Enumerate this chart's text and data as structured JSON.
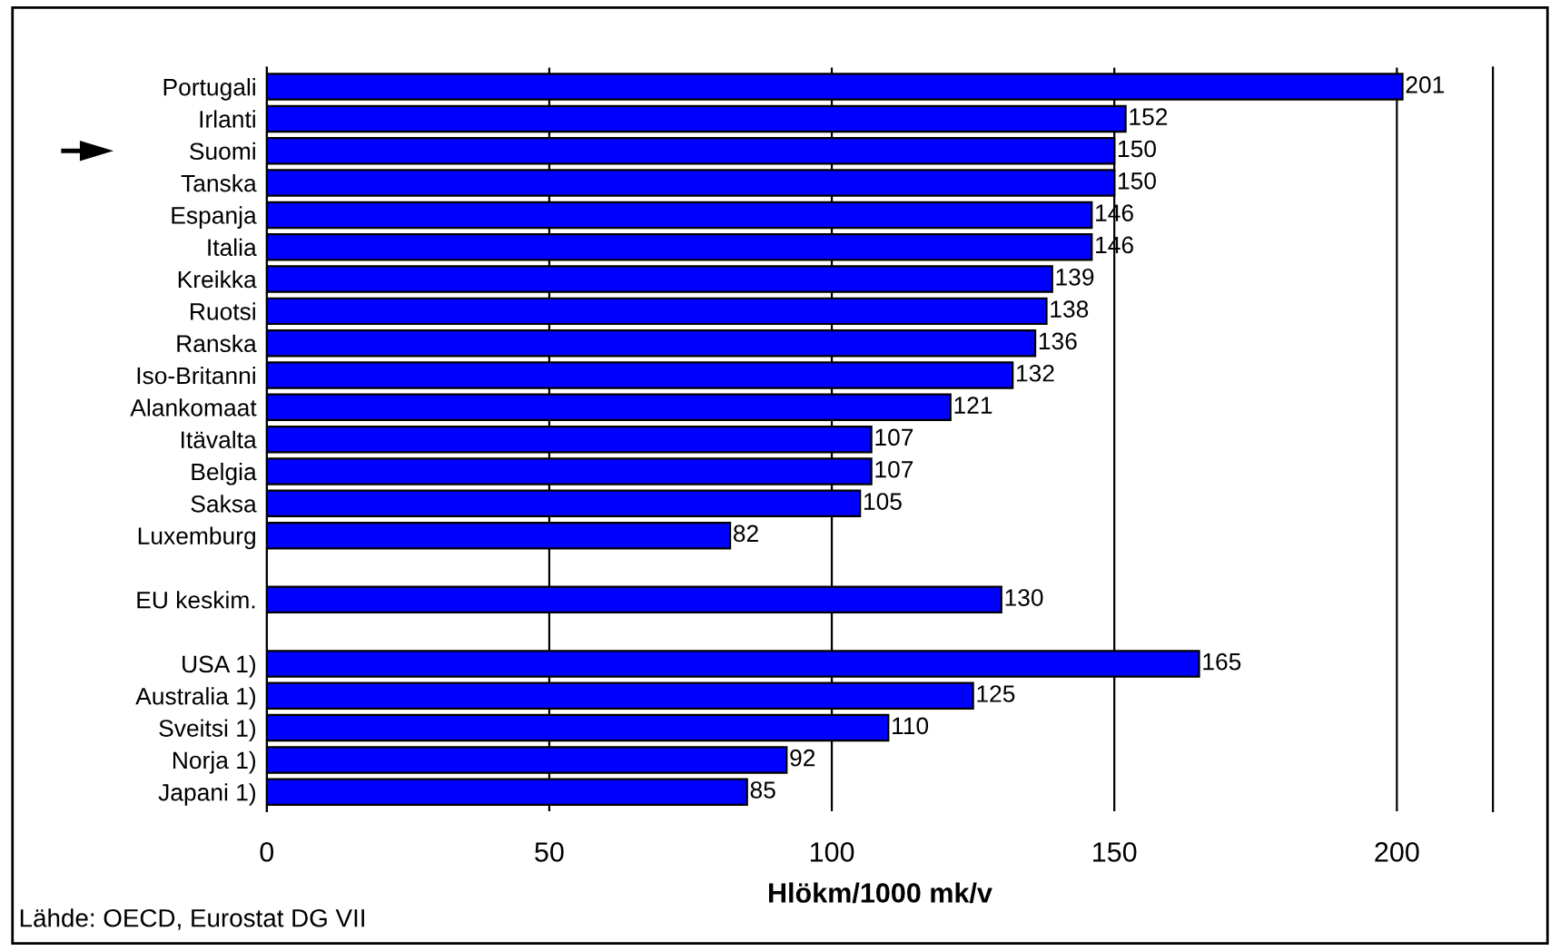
{
  "chart_data": {
    "type": "bar",
    "orientation": "horizontal",
    "xlabel": "Hlökm/1000 mk/v",
    "categories": [
      "Portugali",
      "Irlanti",
      "Suomi",
      "Tanska",
      "Espanja",
      "Italia",
      "Kreikka",
      "Ruotsi",
      "Ranska",
      "Iso-Britanni",
      "Alankomaat",
      "Itävalta",
      "Belgia",
      "Saksa",
      "Luxemburg",
      null,
      "EU keskim.",
      null,
      "USA 1)",
      "Australia 1)",
      "Sveitsi 1)",
      "Norja 1)",
      "Japani 1)"
    ],
    "values": [
      201,
      152,
      150,
      150,
      146,
      146,
      139,
      138,
      136,
      132,
      121,
      107,
      107,
      105,
      82,
      null,
      130,
      null,
      165,
      125,
      110,
      92,
      85
    ],
    "color": "#0000ff",
    "xlim": [
      0,
      217
    ],
    "xticks": [
      0,
      50,
      100,
      150,
      200
    ],
    "grid": "x",
    "data_labels": true,
    "annotations": [
      "Lähde: OECD, Eurostat DG VII"
    ]
  }
}
